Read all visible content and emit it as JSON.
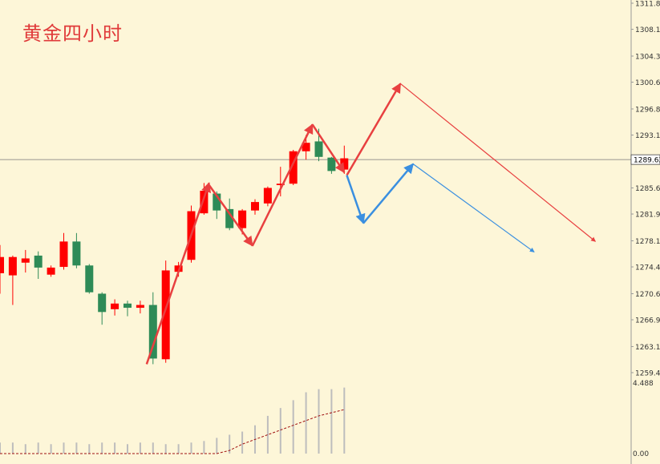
{
  "title": "黄金四小时",
  "colors": {
    "background": "#fdf6d8",
    "up": "#ff0000",
    "down": "#2e8b57",
    "red_arrow": "#e84040",
    "blue_arrow": "#3a8fe0",
    "volume": "#bdbdbd",
    "volume_ma": "#a01010",
    "price_line": "#777777",
    "axis_text": "#333333"
  },
  "chart_data": [
    {
      "type": "candlestick",
      "title": "黄金四小时",
      "ylim": [
        1259.4,
        1311.8
      ],
      "y_ticks": [
        "1311.80",
        "1308.10",
        "1304.30",
        "1300.60",
        "1296.80",
        "1293.10",
        "1285.60",
        "1281.90",
        "1278.10",
        "1274.40",
        "1270.60",
        "1266.90",
        "1263.10",
        "1259.40"
      ],
      "current_price": "1289.62",
      "candles": [
        {
          "o": 1273.5,
          "h": 1277.5,
          "l": 1270.6,
          "c": 1275.8
        },
        {
          "o": 1273.2,
          "h": 1276.0,
          "l": 1269.0,
          "c": 1275.8
        },
        {
          "o": 1275.0,
          "h": 1276.8,
          "l": 1273.6,
          "c": 1275.6
        },
        {
          "o": 1276.0,
          "h": 1276.6,
          "l": 1272.7,
          "c": 1274.3
        },
        {
          "o": 1273.3,
          "h": 1274.6,
          "l": 1273.0,
          "c": 1274.3
        },
        {
          "o": 1274.4,
          "h": 1279.2,
          "l": 1274.0,
          "c": 1278.0
        },
        {
          "o": 1278.0,
          "h": 1279.2,
          "l": 1274.2,
          "c": 1274.6
        },
        {
          "o": 1274.6,
          "h": 1274.8,
          "l": 1270.6,
          "c": 1270.8
        },
        {
          "o": 1270.6,
          "h": 1270.8,
          "l": 1266.2,
          "c": 1268.0
        },
        {
          "o": 1268.4,
          "h": 1269.8,
          "l": 1267.5,
          "c": 1269.2
        },
        {
          "o": 1269.2,
          "h": 1269.6,
          "l": 1267.4,
          "c": 1268.6
        },
        {
          "o": 1268.6,
          "h": 1269.6,
          "l": 1267.8,
          "c": 1269.0
        },
        {
          "o": 1269.0,
          "h": 1270.8,
          "l": 1260.6,
          "c": 1261.4
        },
        {
          "o": 1261.3,
          "h": 1275.3,
          "l": 1260.8,
          "c": 1273.9
        },
        {
          "o": 1273.7,
          "h": 1275.1,
          "l": 1273.0,
          "c": 1274.6
        },
        {
          "o": 1275.4,
          "h": 1283.1,
          "l": 1275.0,
          "c": 1282.3
        },
        {
          "o": 1282.0,
          "h": 1286.3,
          "l": 1281.8,
          "c": 1285.2
        },
        {
          "o": 1284.8,
          "h": 1285.1,
          "l": 1281.2,
          "c": 1282.4
        },
        {
          "o": 1282.6,
          "h": 1284.1,
          "l": 1279.6,
          "c": 1279.9
        },
        {
          "o": 1279.9,
          "h": 1282.6,
          "l": 1279.0,
          "c": 1282.4
        },
        {
          "o": 1282.4,
          "h": 1284.0,
          "l": 1281.8,
          "c": 1283.6
        },
        {
          "o": 1283.4,
          "h": 1285.8,
          "l": 1283.0,
          "c": 1285.6
        },
        {
          "o": 1286.0,
          "h": 1288.6,
          "l": 1284.4,
          "c": 1286.2
        },
        {
          "o": 1286.2,
          "h": 1291.0,
          "l": 1286.0,
          "c": 1290.8
        },
        {
          "o": 1290.8,
          "h": 1293.1,
          "l": 1289.6,
          "c": 1292.0
        },
        {
          "o": 1292.2,
          "h": 1294.0,
          "l": 1289.4,
          "c": 1290.0
        },
        {
          "o": 1289.9,
          "h": 1290.0,
          "l": 1287.6,
          "c": 1288.0
        },
        {
          "o": 1288.2,
          "h": 1291.6,
          "l": 1287.6,
          "c": 1289.8
        }
      ],
      "volume": {
        "y_ticks": [
          "4.488",
          "0.00"
        ],
        "values": [
          0.7,
          0.7,
          0.6,
          0.7,
          0.6,
          0.7,
          0.7,
          0.6,
          0.7,
          0.7,
          0.6,
          0.7,
          0.7,
          0.6,
          0.6,
          0.7,
          0.8,
          1.0,
          1.2,
          1.4,
          1.8,
          2.4,
          2.9,
          3.4,
          3.9,
          4.1,
          4.1,
          4.2
        ],
        "ma": [
          0.0,
          0.0,
          0.0,
          0.0,
          0.0,
          0.0,
          0.0,
          0.0,
          0.0,
          0.0,
          0.0,
          0.0,
          0.0,
          0.0,
          0.0,
          0.0,
          0.0,
          0.0,
          0.2,
          0.6,
          0.9,
          1.2,
          1.5,
          1.8,
          2.1,
          2.4,
          2.6,
          2.8
        ]
      }
    }
  ]
}
